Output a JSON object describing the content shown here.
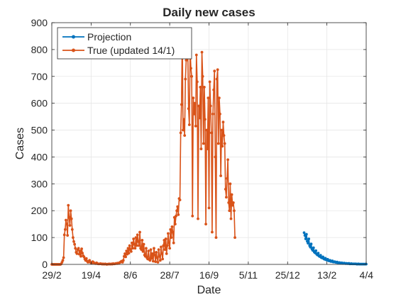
{
  "chart_data": {
    "type": "line",
    "title": "Daily new cases",
    "xlabel": "Date",
    "ylabel": "Cases",
    "ylim": [
      0,
      900
    ],
    "yticks": [
      0,
      100,
      200,
      300,
      400,
      500,
      600,
      700,
      800,
      900
    ],
    "xlim": [
      "2020-02-29",
      "2021-04-04"
    ],
    "xticks": [
      {
        "date": "2020-02-29",
        "label": "29/2"
      },
      {
        "date": "2020-04-19",
        "label": "19/4"
      },
      {
        "date": "2020-06-08",
        "label": "8/6"
      },
      {
        "date": "2020-07-28",
        "label": "28/7"
      },
      {
        "date": "2020-09-16",
        "label": "16/9"
      },
      {
        "date": "2020-11-05",
        "label": "5/11"
      },
      {
        "date": "2020-12-25",
        "label": "25/12"
      },
      {
        "date": "2021-02-13",
        "label": "13/2"
      },
      {
        "date": "2021-04-04",
        "label": "4/4"
      }
    ],
    "grid": true,
    "legend_position": "top-left",
    "series": [
      {
        "name": "Projection",
        "color": "#0072BD",
        "start_date": "2021-01-15",
        "values": [
          118,
          108,
          95,
          112,
          86,
          79,
          95,
          70,
          64,
          76,
          57,
          52,
          62,
          46,
          43,
          51,
          38,
          35,
          42,
          31,
          29,
          34,
          25,
          24,
          28,
          21,
          19,
          23,
          17,
          16,
          19,
          14,
          13,
          15,
          11,
          11,
          13,
          9,
          9,
          10,
          8,
          7,
          9,
          6,
          6,
          7,
          5,
          5,
          6,
          4,
          4,
          5,
          4,
          3,
          4,
          3,
          3,
          4,
          2,
          2,
          3,
          2,
          2,
          2,
          2,
          2,
          2,
          1,
          1,
          2,
          1,
          1,
          1,
          1,
          1,
          1,
          1,
          1,
          1,
          1
        ]
      },
      {
        "name": "True (updated 14/1)",
        "color": "#D95319",
        "start_date": "2020-02-29",
        "values": [
          0,
          0,
          0,
          0,
          0,
          0,
          0,
          0,
          0,
          0,
          0,
          0,
          2,
          8,
          15,
          25,
          110,
          130,
          165,
          150,
          108,
          220,
          175,
          145,
          200,
          170,
          130,
          100,
          85,
          75,
          60,
          45,
          40,
          55,
          60,
          38,
          50,
          30,
          58,
          42,
          32,
          28,
          20,
          15,
          22,
          12,
          8,
          10,
          15,
          8,
          6,
          5,
          10,
          8,
          5,
          4,
          3,
          6,
          3,
          2,
          2,
          2,
          3,
          2,
          1,
          2,
          1,
          1,
          2,
          1,
          0,
          1,
          1,
          2,
          1,
          1,
          2,
          1,
          3,
          2,
          2,
          3,
          4,
          3,
          5,
          4,
          6,
          8,
          10,
          12,
          8,
          15,
          30,
          40,
          28,
          50,
          38,
          60,
          42,
          70,
          55,
          48,
          80,
          60,
          95,
          75,
          60,
          100,
          70,
          110,
          85,
          70,
          120,
          60,
          55,
          90,
          48,
          75,
          35,
          30,
          60,
          25,
          20,
          50,
          18,
          15,
          55,
          22,
          40,
          12,
          60,
          35,
          10,
          45,
          25,
          8,
          55,
          30,
          15,
          65,
          40,
          20,
          70,
          90,
          55,
          95,
          40,
          70,
          115,
          80,
          60,
          130,
          100,
          140,
          120,
          80,
          175,
          150,
          180,
          200,
          215,
          185,
          245,
          240,
          490,
          595,
          860,
          500,
          540,
          480,
          690,
          760,
          840,
          800,
          580,
          520,
          800,
          730,
          700,
          180,
          620,
          560,
          600,
          515,
          780,
          680,
          170,
          590,
          545,
          660,
          430,
          790,
          700,
          450,
          660,
          540,
          150,
          500,
          430,
          620,
          210,
          680,
          590,
          490,
          120,
          560,
          650,
          720,
          400,
          100,
          690,
          725,
          450,
          620,
          560,
          330,
          500,
          440,
          530,
          480,
          450,
          280,
          250,
          320,
          390,
          230,
          200,
          300,
          170,
          260,
          220,
          230,
          200,
          100
        ]
      }
    ]
  }
}
